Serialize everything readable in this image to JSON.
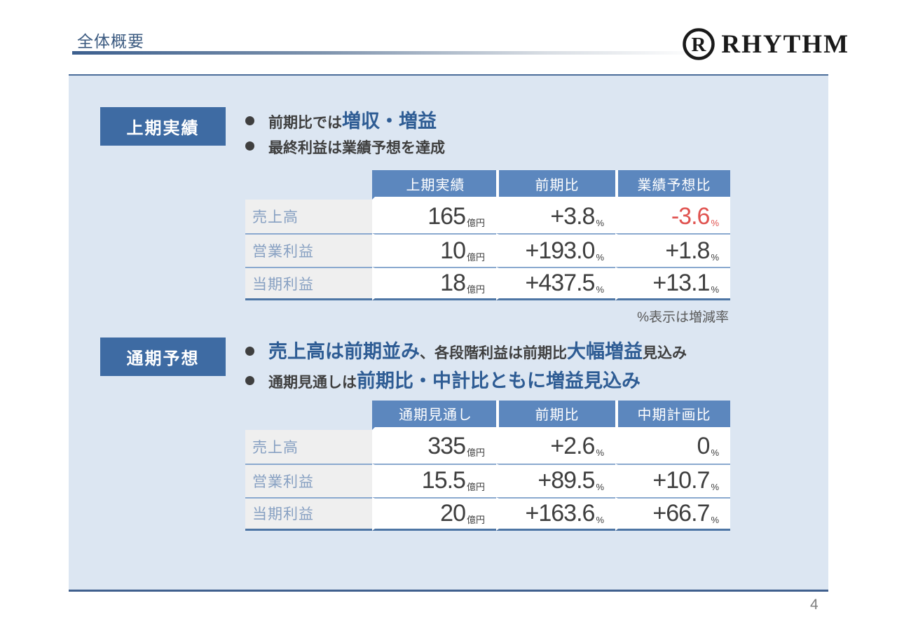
{
  "header": {
    "title": "全体概要",
    "logo_text": "RHYTHM",
    "logo_mark_letter": "R"
  },
  "footer": {
    "page_number": "4"
  },
  "colors": {
    "panel_bg": "#dce6f2",
    "badge_blue": "#3e6ba3",
    "table_header_blue": "#5c87be",
    "emphasis_blue": "#2e5c94",
    "body_text": "#3f3f3f",
    "row_label_text": "#87a0c2",
    "row_label_bg": "#efefef",
    "negative_red": "#e0524f",
    "note_gray": "#595959"
  },
  "sections": [
    {
      "badge": "上期実績",
      "bullets": [
        {
          "segments": [
            {
              "text": "前期比では",
              "style": "normal"
            },
            {
              "text": "増収・増益",
              "style": "emphasis"
            }
          ]
        },
        {
          "segments": [
            {
              "text": "最終利益は業績予想を達成",
              "style": "normal"
            }
          ]
        }
      ],
      "table": {
        "headers": [
          "上期実績",
          "前期比",
          "業績予想比"
        ],
        "rows": [
          {
            "label": "売上高",
            "cells": [
              {
                "value": "165",
                "unit": "億円"
              },
              {
                "value": "+3.8",
                "unit": "%"
              },
              {
                "value": "-3.6",
                "unit": "%",
                "negative": true
              }
            ]
          },
          {
            "label": "営業利益",
            "cells": [
              {
                "value": "10",
                "unit": "億円"
              },
              {
                "value": "+193.0",
                "unit": "%"
              },
              {
                "value": "+1.8",
                "unit": "%"
              }
            ]
          },
          {
            "label": "当期利益",
            "cells": [
              {
                "value": "18",
                "unit": "億円"
              },
              {
                "value": "+437.5",
                "unit": "%"
              },
              {
                "value": "+13.1",
                "unit": "%"
              }
            ]
          }
        ],
        "note": "%表示は増減率"
      }
    },
    {
      "badge": "通期予想",
      "bullets": [
        {
          "segments": [
            {
              "text": "売上高は前期並み",
              "style": "emphasis"
            },
            {
              "text": "、各段階利益は前期比",
              "style": "normal"
            },
            {
              "text": "大幅増益",
              "style": "emphasis"
            },
            {
              "text": "見込み",
              "style": "normal"
            }
          ]
        },
        {
          "segments": [
            {
              "text": "通期見通しは",
              "style": "normal"
            },
            {
              "text": "前期比・中計比ともに増益見込み",
              "style": "emphasis"
            }
          ]
        }
      ],
      "table": {
        "headers": [
          "通期見通し",
          "前期比",
          "中期計画比"
        ],
        "rows": [
          {
            "label": "売上高",
            "cells": [
              {
                "value": "335",
                "unit": "億円"
              },
              {
                "value": "+2.6",
                "unit": "%"
              },
              {
                "value": "0",
                "unit": "%"
              }
            ]
          },
          {
            "label": "営業利益",
            "cells": [
              {
                "value": "15.5",
                "unit": "億円"
              },
              {
                "value": "+89.5",
                "unit": "%"
              },
              {
                "value": "+10.7",
                "unit": "%"
              }
            ]
          },
          {
            "label": "当期利益",
            "cells": [
              {
                "value": "20",
                "unit": "億円"
              },
              {
                "value": "+163.6",
                "unit": "%"
              },
              {
                "value": "+66.7",
                "unit": "%"
              }
            ]
          }
        ],
        "note": ""
      }
    }
  ]
}
